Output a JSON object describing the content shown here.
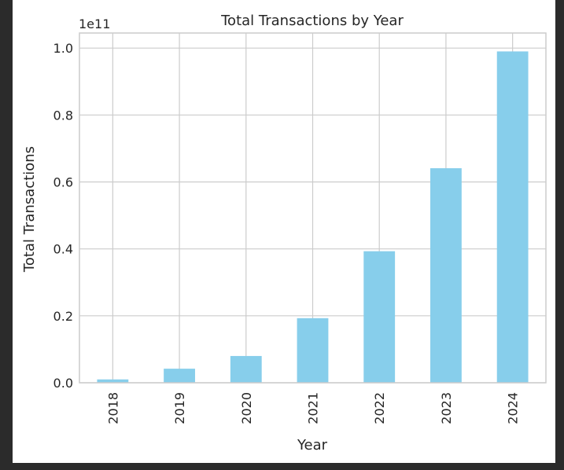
{
  "chart_data": {
    "type": "bar",
    "title": "Total Transactions by Year",
    "xlabel": "Year",
    "ylabel": "Total Transactions",
    "offset_label": "1e11",
    "categories": [
      "2018",
      "2019",
      "2020",
      "2021",
      "2022",
      "2023",
      "2024"
    ],
    "values": [
      1000000000.0,
      4200000000.0,
      8000000000.0,
      19300000000.0,
      39300000000.0,
      64100000000.0,
      99000000000.0
    ],
    "ylim": [
      0,
      104500000000.0
    ],
    "yticks": [
      0,
      20000000000.0,
      40000000000.0,
      60000000000.0,
      80000000000.0,
      100000000000.0
    ],
    "ytick_labels": [
      "0.0",
      "0.2",
      "0.4",
      "0.6",
      "0.8",
      "1.0"
    ],
    "bar_color": "#87ceeb",
    "grid": true,
    "grid_color": "#cccccc"
  }
}
